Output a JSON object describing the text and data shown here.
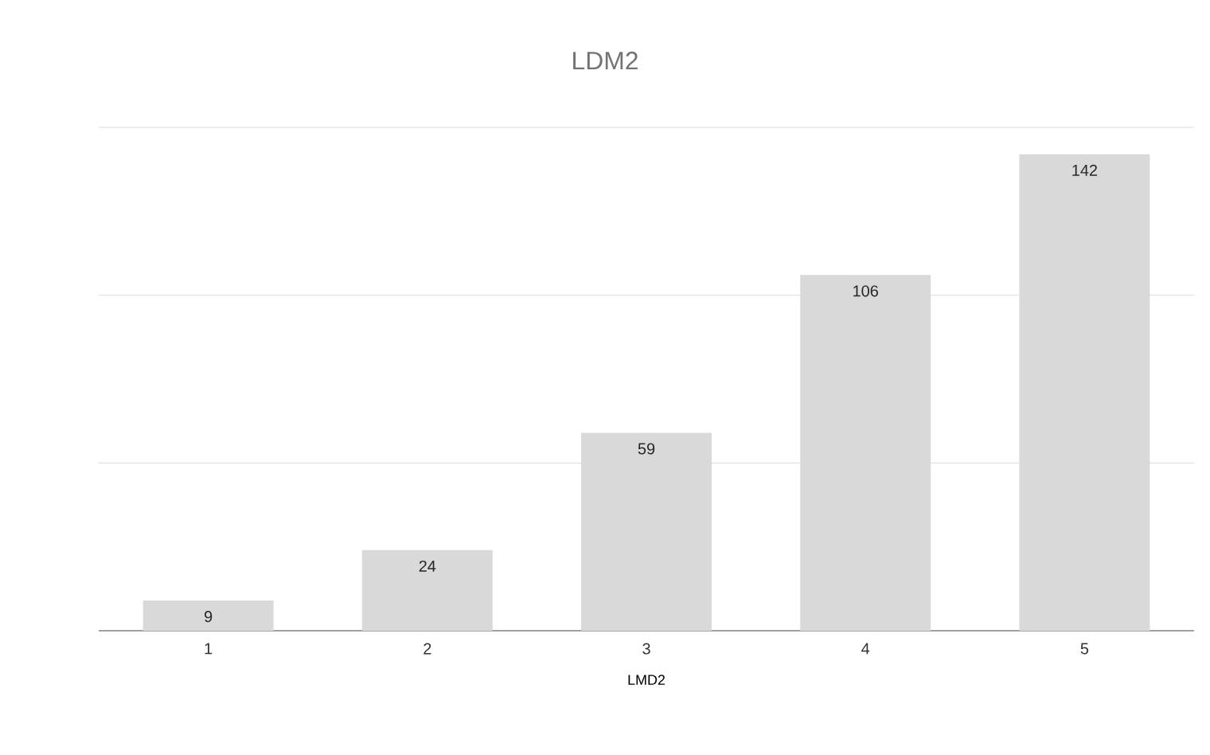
{
  "chart_data": {
    "type": "bar",
    "title": "LDM2",
    "xlabel": "LMD2",
    "categories": [
      "1",
      "2",
      "3",
      "4",
      "5"
    ],
    "values": [
      9,
      24,
      59,
      106,
      142
    ],
    "color": "#d9d9d9",
    "ylim": [
      0,
      150
    ],
    "yticks": [
      {
        "value": 0,
        "label": null
      },
      {
        "value": 50,
        "label": null
      },
      {
        "value": 100,
        "label": null
      },
      {
        "value": 150,
        "label": null
      }
    ],
    "tick_labels": "x",
    "grid": "y",
    "data_labels": true
  }
}
